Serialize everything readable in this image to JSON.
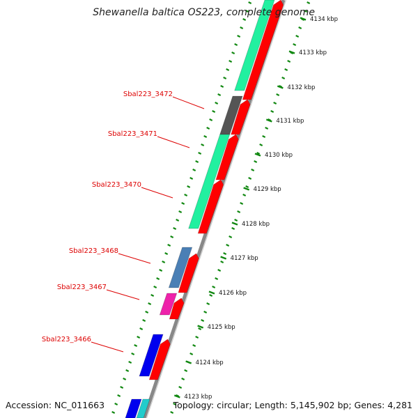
{
  "title": "Shewanella baltica OS223, complete genome",
  "footer": {
    "accession": "Accession: NC_011663",
    "summary": "Topology: circular; Length: 5,145,902 bp; Genes: 4,281"
  },
  "ruler": {
    "ticks": [
      "4134 kbp",
      "4133 kbp",
      "4132 kbp",
      "4131 kbp",
      "4130 kbp",
      "4129 kbp",
      "4128 kbp",
      "4127 kbp",
      "4126 kbp",
      "4125 kbp",
      "4124 kbp",
      "4123 kbp"
    ]
  },
  "gene_labels": [
    "Sbal223_3472",
    "Sbal223_3471",
    "Sbal223_3470",
    "Sbal223_3468",
    "Sbal223_3467",
    "Sbal223_3466"
  ],
  "colors": {
    "cds_forward": "#ff0000",
    "green": "#22f0a0",
    "gray": "#555555",
    "steelblue": "#4a7fb5",
    "magenta": "#ee22aa",
    "blue": "#0000ee",
    "cyan": "#22cccc",
    "tick_green": "#118811",
    "label_red": "#dd0000",
    "backbone": "#888888"
  }
}
